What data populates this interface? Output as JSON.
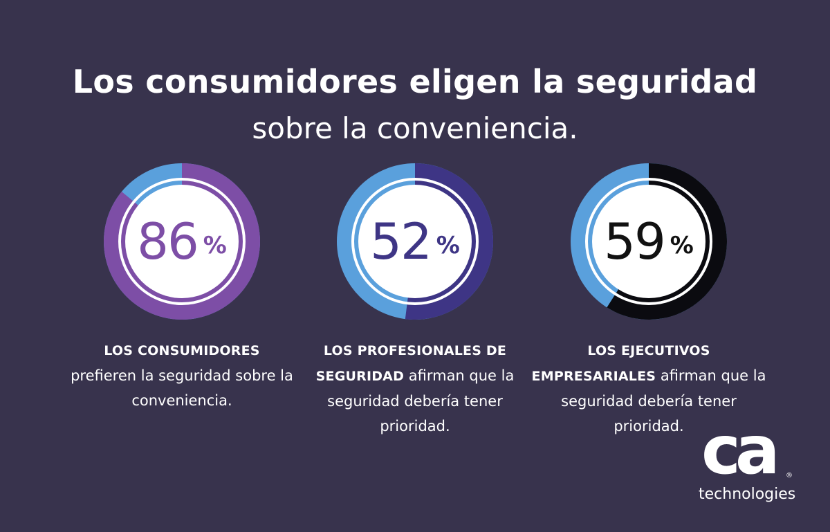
{
  "title": "Los consumidores eligen la seguridad",
  "subtitle": "sobre la conveniencia.",
  "chart_data": {
    "type": "pie",
    "series": [
      {
        "value": 86,
        "value_label": "86",
        "unit": "%",
        "color": "#7d4ea6",
        "number_color": "#7d4ea6",
        "caption_bold": "LOS CONSUMIDORES",
        "caption_text": "prefieren la seguridad sobre la conveniencia."
      },
      {
        "value": 52,
        "value_label": "52",
        "unit": "%",
        "color": "#3e3585",
        "number_color": "#3e3585",
        "caption_bold": "LOS PROFESIONALES DE SEGURIDAD",
        "caption_text": "afirman que la seguridad debería tener prioridad."
      },
      {
        "value": 59,
        "value_label": "59",
        "unit": "%",
        "color": "#0b0b10",
        "number_color": "#111111",
        "caption_bold": "LOS EJECUTIVOS EMPRESARIALES",
        "caption_text": "afirman que la seguridad debería tener prioridad."
      }
    ],
    "remainder_color": "#5aa0dc"
  },
  "logo": {
    "mark": "ca",
    "registered": "®",
    "wordmark": "technologies"
  },
  "colors": {
    "background": "#38334d",
    "text": "#ffffff"
  }
}
